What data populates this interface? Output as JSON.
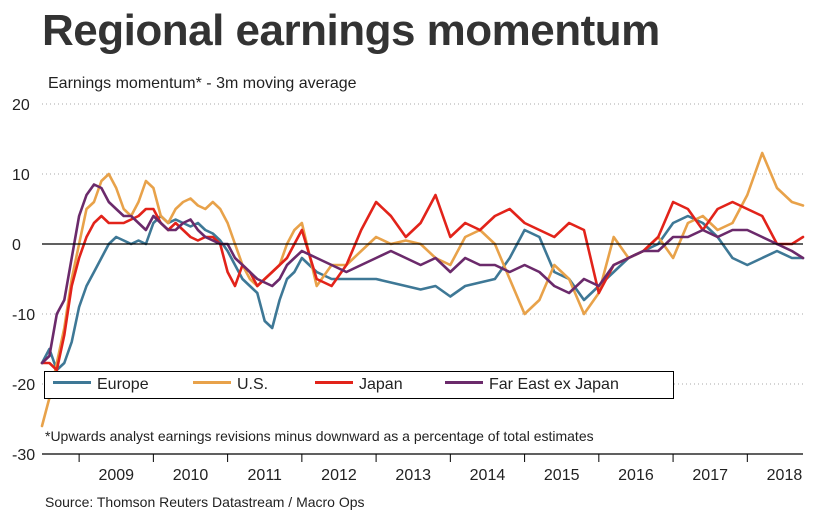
{
  "title": "Regional earnings momentum",
  "subtitle": "Earnings momentum* - 3m moving average",
  "footnote": "*Upwards analyst earnings revisions minus downward as a percentage of total estimates",
  "source": "Source: Thomson Reuters Datastream / Macro Ops",
  "chart_data": {
    "type": "line",
    "title": "Regional earnings momentum",
    "subtitle": "Earnings momentum* - 3m moving average",
    "ylim": [
      -30,
      20
    ],
    "xlim": [
      2008.5,
      2018.75
    ],
    "yticks": [
      20,
      10,
      0,
      -10,
      -20,
      -30
    ],
    "xticks": [
      "2009",
      "2010",
      "2011",
      "2012",
      "2013",
      "2014",
      "2015",
      "2016",
      "2017",
      "2018"
    ],
    "grid": "horizontal dotted",
    "legend_position": "bottom-left",
    "series": [
      {
        "name": "Europe",
        "color": "#3e7896",
        "x": [
          2008.5,
          2008.6,
          2008.7,
          2008.8,
          2008.9,
          2009.0,
          2009.1,
          2009.2,
          2009.3,
          2009.4,
          2009.5,
          2009.6,
          2009.7,
          2009.8,
          2009.9,
          2010.0,
          2010.1,
          2010.2,
          2010.3,
          2010.4,
          2010.5,
          2010.6,
          2010.7,
          2010.8,
          2010.9,
          2011.0,
          2011.1,
          2011.2,
          2011.3,
          2011.4,
          2011.5,
          2011.6,
          2011.7,
          2011.8,
          2011.9,
          2012.0,
          2012.2,
          2012.4,
          2012.6,
          2012.8,
          2013.0,
          2013.2,
          2013.4,
          2013.6,
          2013.8,
          2014.0,
          2014.2,
          2014.4,
          2014.6,
          2014.8,
          2015.0,
          2015.2,
          2015.4,
          2015.6,
          2015.8,
          2016.0,
          2016.2,
          2016.4,
          2016.6,
          2016.8,
          2017.0,
          2017.2,
          2017.4,
          2017.6,
          2017.8,
          2018.0,
          2018.2,
          2018.4,
          2018.6,
          2018.75
        ],
        "y": [
          -17,
          -15,
          -18,
          -17,
          -14,
          -9,
          -6,
          -4,
          -2,
          0,
          1,
          0.5,
          0,
          0.5,
          0,
          3,
          4,
          3,
          3.5,
          3,
          2.5,
          3,
          2,
          1.5,
          0.5,
          -1,
          -3,
          -5,
          -6,
          -7,
          -11,
          -12,
          -8,
          -5,
          -4,
          -2,
          -4,
          -5,
          -5,
          -5,
          -5,
          -5.5,
          -6,
          -6.5,
          -6,
          -7.5,
          -6,
          -5.5,
          -5,
          -2,
          2,
          1,
          -4,
          -5,
          -8,
          -6,
          -4,
          -2,
          -1,
          0,
          3,
          4,
          3,
          1,
          -2,
          -3,
          -2,
          -1,
          -2,
          -2
        ]
      },
      {
        "name": "U.S.",
        "color": "#e8a24a",
        "x": [
          2008.5,
          2008.6,
          2008.7,
          2008.8,
          2008.9,
          2009.0,
          2009.1,
          2009.2,
          2009.3,
          2009.4,
          2009.5,
          2009.6,
          2009.7,
          2009.8,
          2009.9,
          2010.0,
          2010.1,
          2010.2,
          2010.3,
          2010.4,
          2010.5,
          2010.6,
          2010.7,
          2010.8,
          2010.9,
          2011.0,
          2011.1,
          2011.2,
          2011.3,
          2011.4,
          2011.5,
          2011.6,
          2011.7,
          2011.8,
          2011.9,
          2012.0,
          2012.2,
          2012.4,
          2012.6,
          2012.8,
          2013.0,
          2013.2,
          2013.4,
          2013.6,
          2013.8,
          2014.0,
          2014.2,
          2014.4,
          2014.6,
          2014.8,
          2015.0,
          2015.2,
          2015.4,
          2015.6,
          2015.8,
          2016.0,
          2016.2,
          2016.4,
          2016.6,
          2016.8,
          2017.0,
          2017.2,
          2017.4,
          2017.6,
          2017.8,
          2018.0,
          2018.2,
          2018.4,
          2018.6,
          2018.75
        ],
        "y": [
          -26,
          -22,
          -17,
          -12,
          -5,
          0,
          5,
          6,
          9,
          10,
          8,
          5,
          4,
          6,
          9,
          8,
          4,
          3,
          5,
          6,
          6.5,
          5.5,
          5,
          6,
          5,
          3,
          0,
          -3,
          -5,
          -6,
          -5,
          -4,
          -3,
          0,
          2,
          3,
          -6,
          -3,
          -3,
          -1,
          1,
          0,
          0.5,
          0,
          -2,
          -3,
          1,
          2,
          0,
          -5,
          -10,
          -8,
          -3,
          -5,
          -10,
          -7,
          1,
          -2,
          -1,
          1,
          -2,
          3,
          4,
          2,
          3,
          7,
          13,
          8,
          6,
          5.5
        ]
      },
      {
        "name": "Japan",
        "color": "#e2231a",
        "x": [
          2008.5,
          2008.6,
          2008.7,
          2008.8,
          2008.9,
          2009.0,
          2009.1,
          2009.2,
          2009.3,
          2009.4,
          2009.5,
          2009.6,
          2009.7,
          2009.8,
          2009.9,
          2010.0,
          2010.1,
          2010.2,
          2010.3,
          2010.4,
          2010.5,
          2010.6,
          2010.7,
          2010.8,
          2010.9,
          2011.0,
          2011.1,
          2011.2,
          2011.3,
          2011.4,
          2011.5,
          2011.6,
          2011.7,
          2011.8,
          2011.9,
          2012.0,
          2012.2,
          2012.4,
          2012.6,
          2012.8,
          2013.0,
          2013.2,
          2013.4,
          2013.6,
          2013.8,
          2014.0,
          2014.2,
          2014.4,
          2014.6,
          2014.8,
          2015.0,
          2015.2,
          2015.4,
          2015.6,
          2015.8,
          2016.0,
          2016.2,
          2016.4,
          2016.6,
          2016.8,
          2017.0,
          2017.2,
          2017.4,
          2017.6,
          2017.8,
          2018.0,
          2018.2,
          2018.4,
          2018.6,
          2018.75
        ],
        "y": [
          -17,
          -17,
          -18,
          -13,
          -6,
          -2,
          1,
          3,
          4,
          3,
          3,
          3,
          3.5,
          4,
          5,
          5,
          3,
          2,
          3,
          2,
          1,
          0.5,
          1,
          1,
          0,
          -4,
          -6,
          -3,
          -4,
          -6,
          -5,
          -4,
          -3,
          -2,
          0,
          2,
          -5,
          -6,
          -3,
          2,
          6,
          4,
          1,
          3,
          7,
          1,
          3,
          2,
          4,
          5,
          3,
          2,
          1,
          3,
          2,
          -7,
          -3,
          -2,
          -1,
          1,
          6,
          5,
          2,
          5,
          6,
          5,
          4,
          0,
          0,
          1
        ]
      },
      {
        "name": "Far East ex Japan",
        "color": "#6b2a6b",
        "x": [
          2008.5,
          2008.6,
          2008.7,
          2008.8,
          2008.9,
          2009.0,
          2009.1,
          2009.2,
          2009.3,
          2009.4,
          2009.5,
          2009.6,
          2009.7,
          2009.8,
          2009.9,
          2010.0,
          2010.1,
          2010.2,
          2010.3,
          2010.4,
          2010.5,
          2010.6,
          2010.7,
          2010.8,
          2010.9,
          2011.0,
          2011.1,
          2011.2,
          2011.3,
          2011.4,
          2011.5,
          2011.6,
          2011.7,
          2011.8,
          2011.9,
          2012.0,
          2012.2,
          2012.4,
          2012.6,
          2012.8,
          2013.0,
          2013.2,
          2013.4,
          2013.6,
          2013.8,
          2014.0,
          2014.2,
          2014.4,
          2014.6,
          2014.8,
          2015.0,
          2015.2,
          2015.4,
          2015.6,
          2015.8,
          2016.0,
          2016.2,
          2016.4,
          2016.6,
          2016.8,
          2017.0,
          2017.2,
          2017.4,
          2017.6,
          2017.8,
          2018.0,
          2018.2,
          2018.4,
          2018.6,
          2018.75
        ],
        "y": [
          -17,
          -16,
          -10,
          -8,
          -2,
          4,
          7,
          8.5,
          8,
          6,
          5,
          4,
          4,
          3,
          2,
          4,
          3,
          2,
          2,
          3,
          3.5,
          2,
          1,
          0.5,
          0,
          0,
          -2,
          -3,
          -4,
          -5,
          -5.5,
          -6,
          -5,
          -3,
          -2,
          -1,
          -2,
          -3,
          -4,
          -3,
          -2,
          -1,
          -2,
          -3,
          -2,
          -4,
          -2,
          -3,
          -3,
          -4,
          -3,
          -4,
          -6,
          -7,
          -5,
          -6,
          -3,
          -2,
          -1,
          -1,
          1,
          1,
          2,
          1,
          2,
          2,
          1,
          0,
          -1,
          -2
        ]
      }
    ]
  }
}
